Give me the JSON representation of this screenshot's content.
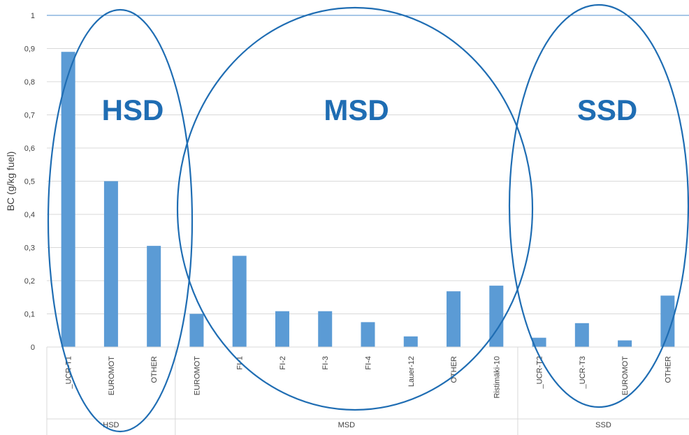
{
  "chart_data": {
    "type": "bar",
    "ylabel": "BC (g/kg fuel)",
    "ylim": [
      0,
      1
    ],
    "y_ticks": [
      "0",
      "0,1",
      "0,2",
      "0,3",
      "0,4",
      "0,5",
      "0,6",
      "0,7",
      "0,8",
      "0,9",
      "1"
    ],
    "grid": true,
    "bar_color": "#5b9bd5",
    "annotation_color": "#1f6db3",
    "groups": [
      {
        "name": "HSD",
        "categories": [
          "_UCR-T1",
          "EUROMOT",
          "OTHER"
        ],
        "values": [
          0.89,
          0.5,
          0.305
        ]
      },
      {
        "name": "MSD",
        "categories": [
          "EUROMOT",
          "FI-1",
          "FI-2",
          "FI-3",
          "FI-4",
          "Lauer-12",
          "OTHER",
          "Ristimäki-10"
        ],
        "values": [
          0.1,
          0.275,
          0.108,
          0.108,
          0.075,
          0.032,
          0.168,
          0.185
        ]
      },
      {
        "name": "SSD",
        "categories": [
          "_UCR-T2",
          "_UCR-T3",
          "EUROMOT",
          "OTHER"
        ],
        "values": [
          0.028,
          0.072,
          0.02,
          0.155
        ]
      }
    ],
    "annotations": [
      "HSD",
      "MSD",
      "SSD"
    ]
  }
}
